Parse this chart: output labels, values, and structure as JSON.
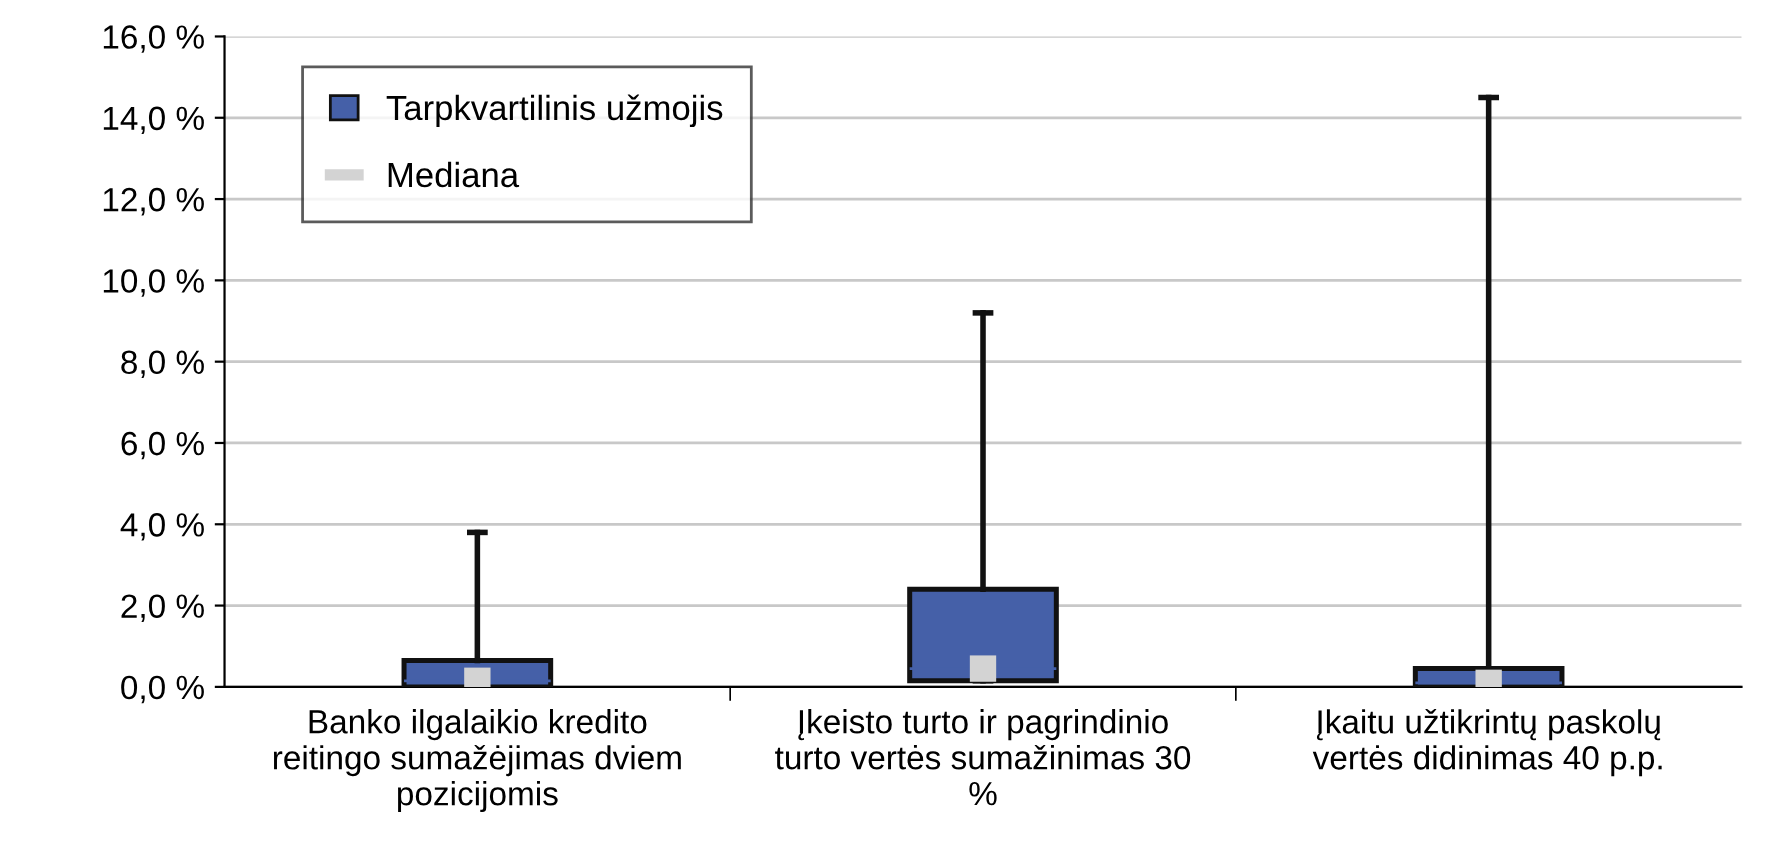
{
  "chart_data": {
    "type": "box",
    "categories": [
      "Banko ilgalaikio kredito\nreitingo sumažėjimas dviem\npozicijomis",
      "Įkeisto turto ir pagrindinio\nturto vertės sumažinimas 30\n%",
      "Įkaitu užtikrintų paskolų\nvertės didinimas 40 p.p."
    ],
    "series": [
      {
        "name": "Tarpkvartilinis užmojis",
        "type": "box",
        "color": "#4560a8",
        "boxes": [
          {
            "low": 0.0,
            "q1": 0.0,
            "median": 0.15,
            "q3": 0.65,
            "high": 3.8
          },
          {
            "low": 0.15,
            "q1": 0.15,
            "median": 0.45,
            "q3": 2.4,
            "high": 9.2
          },
          {
            "low": 0.0,
            "q1": 0.0,
            "median": 0.1,
            "q3": 0.45,
            "high": 14.5
          }
        ]
      },
      {
        "name": "Mediana",
        "type": "scatter",
        "color": "#d3d3d3",
        "x": [
          "Banko ilgalaikio kredito\nreitingo sumažėjimas dviem\npozicijomis",
          "Įkeisto turto ir pagrindinio\nturto vertės sumažinimas 30\n%",
          "Įkaitu užtikrintų paskolų\nvertės didinimas 40 p.p."
        ],
        "values": [
          0.15,
          0.45,
          0.1
        ]
      }
    ],
    "ylim": [
      0,
      16
    ],
    "yticks": [
      {
        "value": 0,
        "label": "0,0 %"
      },
      {
        "value": 2,
        "label": "2,0 %"
      },
      {
        "value": 4,
        "label": "4,0 %"
      },
      {
        "value": 6,
        "label": "6,0 %"
      },
      {
        "value": 8,
        "label": "8,0 %"
      },
      {
        "value": 10,
        "label": "10,0 %"
      },
      {
        "value": 12,
        "label": "12,0 %"
      },
      {
        "value": 14,
        "label": "14,0 %"
      },
      {
        "value": 16,
        "label": "16,0 %"
      }
    ],
    "grid": "y",
    "legend": "top left"
  }
}
